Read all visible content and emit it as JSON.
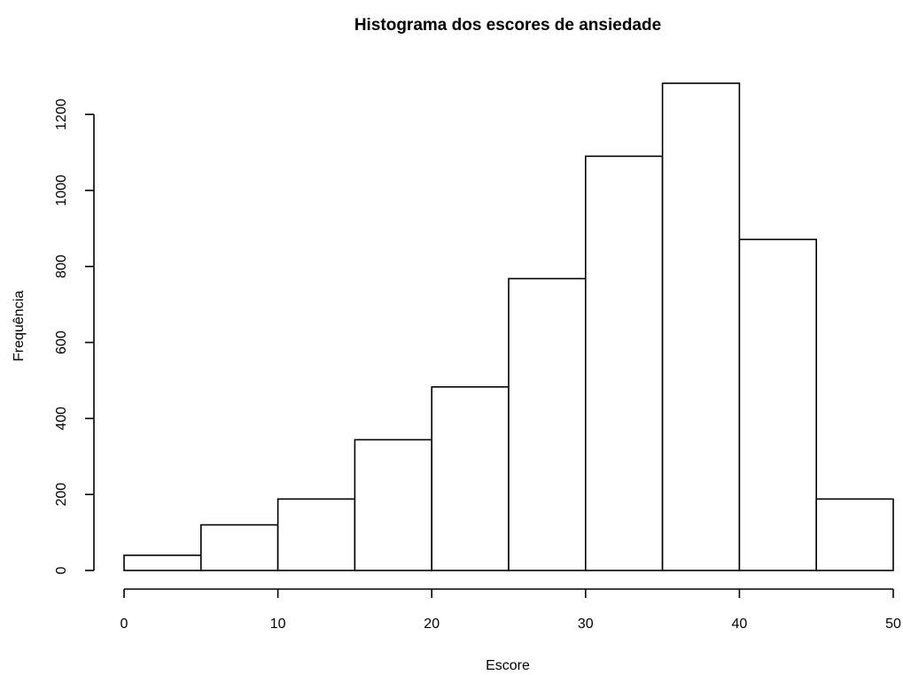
{
  "chart_data": {
    "type": "bar",
    "subtype": "histogram",
    "title": "Histograma dos escores de ansiedade",
    "xlabel": "Escore",
    "ylabel": "Frequência",
    "bins": [
      {
        "from": 0,
        "to": 5,
        "value": 40
      },
      {
        "from": 5,
        "to": 10,
        "value": 120
      },
      {
        "from": 10,
        "to": 15,
        "value": 188
      },
      {
        "from": 15,
        "to": 20,
        "value": 344
      },
      {
        "from": 20,
        "to": 25,
        "value": 483
      },
      {
        "from": 25,
        "to": 30,
        "value": 768
      },
      {
        "from": 30,
        "to": 35,
        "value": 1090
      },
      {
        "from": 35,
        "to": 40,
        "value": 1282
      },
      {
        "from": 40,
        "to": 45,
        "value": 871
      },
      {
        "from": 45,
        "to": 50,
        "value": 188
      }
    ],
    "xlim": [
      0,
      50
    ],
    "ylim": [
      0,
      1282
    ],
    "x_ticks": [
      0,
      10,
      20,
      30,
      40,
      50
    ],
    "y_ticks": [
      0,
      200,
      400,
      600,
      800,
      1000,
      1200
    ],
    "grid": false,
    "legend": "none",
    "bar_fill": "#ffffff",
    "bar_stroke": "#000000"
  }
}
